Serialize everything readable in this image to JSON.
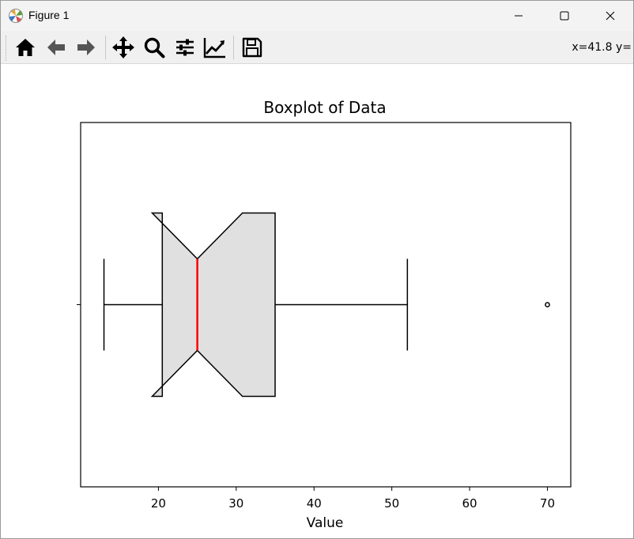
{
  "window": {
    "title": "Figure 1"
  },
  "toolbar": {
    "buttons": [
      {
        "icon": "home-icon",
        "name": "home-button"
      },
      {
        "icon": "back-arrow-icon",
        "name": "back-button"
      },
      {
        "icon": "forward-arrow-icon",
        "name": "forward-button"
      },
      {
        "icon": "pan-move-icon",
        "name": "pan-button"
      },
      {
        "icon": "zoom-magnifier-icon",
        "name": "zoom-button"
      },
      {
        "icon": "configure-subplots-icon",
        "name": "subplots-button"
      },
      {
        "icon": "edit-axis-icon",
        "name": "axes-button"
      },
      {
        "icon": "save-floppy-icon",
        "name": "save-button"
      }
    ],
    "coords_text": "x=41.8 y="
  },
  "chart_data": {
    "type": "boxplot",
    "title": "Boxplot of Data",
    "xlabel": "Value",
    "ylabel": "",
    "orientation": "horizontal",
    "notched": true,
    "xlim": [
      10,
      73
    ],
    "xticks": [
      20,
      30,
      40,
      50,
      60,
      70
    ],
    "grid": false,
    "box": {
      "whisker_low": 13,
      "q1": 20.5,
      "median": 25,
      "q3": 35,
      "whisker_high": 52,
      "notch_low": 19.2,
      "notch_high": 30.8,
      "outliers": [
        70
      ]
    },
    "colors": {
      "box_fill": "#e0e0e0",
      "median": "#ff0000",
      "lines": "#000000"
    }
  }
}
